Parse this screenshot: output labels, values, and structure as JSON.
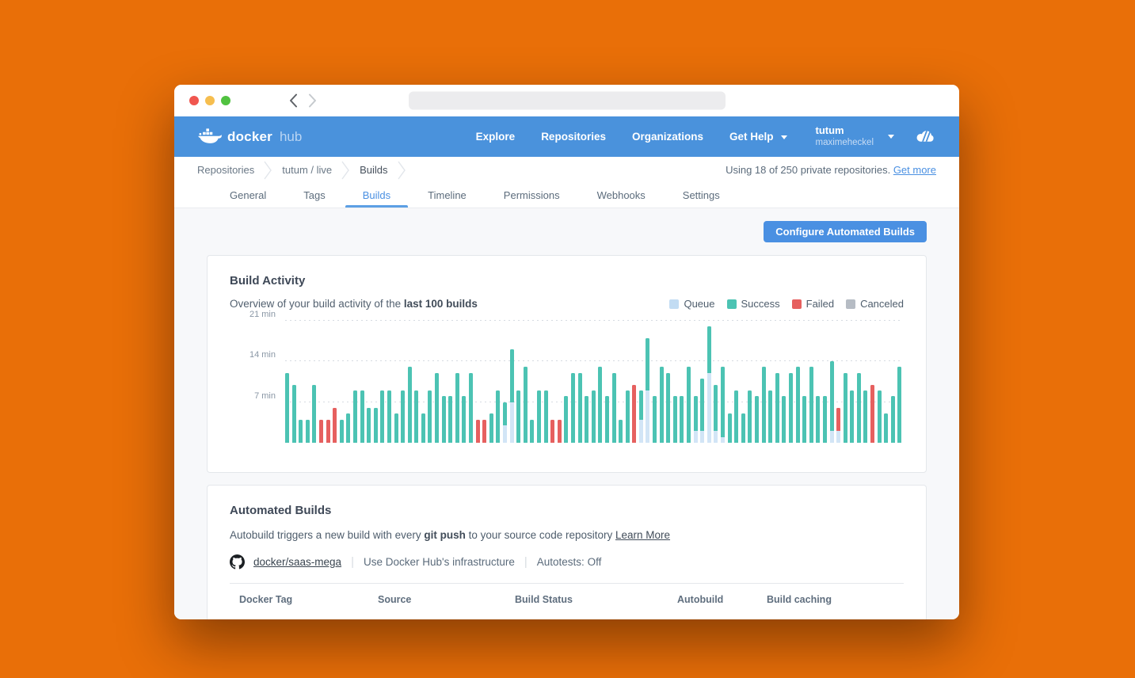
{
  "browser": {
    "url_value": ""
  },
  "navbar": {
    "brand": {
      "docker": "docker",
      "hub": "hub"
    },
    "links": [
      "Explore",
      "Repositories",
      "Organizations"
    ],
    "help_label": "Get Help",
    "account": {
      "org": "tutum",
      "user": "maximeheckel"
    }
  },
  "breadcrumb": {
    "items": [
      "Repositories",
      "tutum / live",
      "Builds"
    ],
    "usage_text": "Using 18 of 250 private repositories.",
    "usage_link": "Get more"
  },
  "tabs": {
    "items": [
      "General",
      "Tags",
      "Builds",
      "Timeline",
      "Permissions",
      "Webhooks",
      "Settings"
    ],
    "active": "Builds"
  },
  "toolbar": {
    "configure_button": "Configure Automated Builds"
  },
  "build_activity": {
    "title": "Build Activity",
    "subtitle_prefix": "Overview of your build activity of the ",
    "subtitle_bold": "last 100 builds"
  },
  "chart_data": {
    "type": "bar",
    "stacked": true,
    "unit": "min",
    "ylim": [
      0,
      21
    ],
    "yticks": [
      "7 min",
      "14 min",
      "21 min"
    ],
    "grid": "dotted-horizontal",
    "legend_position": "top-right",
    "legend": [
      {
        "label": "Queue",
        "key": "q",
        "color": "#C2DCF3"
      },
      {
        "label": "Success",
        "key": "s",
        "color": "#4CC3B3"
      },
      {
        "label": "Failed",
        "key": "f",
        "color": "#E6605F"
      },
      {
        "label": "Canceled",
        "key": "c",
        "color": "#B6BCC4"
      }
    ],
    "bar_colors": {
      "q": "#D2E5F6",
      "s": "#4CC3B3",
      "f": "#E6605F",
      "c": "#B6BCC4"
    },
    "bars": [
      {
        "s": 12
      },
      {
        "s": 10
      },
      {
        "s": 4
      },
      {
        "s": 4
      },
      {
        "s": 10
      },
      {
        "f": 4
      },
      {
        "f": 4
      },
      {
        "f": 6
      },
      {
        "s": 4
      },
      {
        "s": 5
      },
      {
        "s": 9
      },
      {
        "s": 9
      },
      {
        "s": 6
      },
      {
        "s": 6
      },
      {
        "s": 9
      },
      {
        "s": 9
      },
      {
        "s": 5
      },
      {
        "s": 9
      },
      {
        "s": 13
      },
      {
        "s": 9
      },
      {
        "s": 5
      },
      {
        "s": 9
      },
      {
        "s": 12
      },
      {
        "s": 8
      },
      {
        "s": 8
      },
      {
        "s": 12
      },
      {
        "s": 8
      },
      {
        "s": 12
      },
      {
        "f": 4
      },
      {
        "f": 4
      },
      {
        "s": 5
      },
      {
        "s": 9
      },
      {
        "q": 3,
        "s": 4
      },
      {
        "q": 7,
        "s": 9
      },
      {
        "s": 9
      },
      {
        "s": 13
      },
      {
        "s": 4
      },
      {
        "s": 9
      },
      {
        "s": 9
      },
      {
        "f": 4
      },
      {
        "f": 4
      },
      {
        "s": 8
      },
      {
        "s": 12
      },
      {
        "s": 12
      },
      {
        "s": 8
      },
      {
        "s": 9
      },
      {
        "s": 13
      },
      {
        "s": 8
      },
      {
        "s": 12
      },
      {
        "s": 4
      },
      {
        "s": 9
      },
      {
        "f": 10
      },
      {
        "q": 4,
        "s": 5
      },
      {
        "q": 9,
        "s": 9
      },
      {
        "s": 8
      },
      {
        "s": 13
      },
      {
        "s": 12
      },
      {
        "s": 8
      },
      {
        "s": 8
      },
      {
        "s": 13
      },
      {
        "q": 2,
        "s": 6
      },
      {
        "q": 2,
        "s": 9
      },
      {
        "q": 12,
        "s": 8
      },
      {
        "q": 2,
        "s": 8
      },
      {
        "q": 1,
        "s": 12
      },
      {
        "s": 5
      },
      {
        "s": 9
      },
      {
        "s": 5
      },
      {
        "s": 9
      },
      {
        "s": 8
      },
      {
        "s": 13
      },
      {
        "s": 9
      },
      {
        "s": 12
      },
      {
        "s": 8
      },
      {
        "s": 12
      },
      {
        "s": 13
      },
      {
        "s": 8
      },
      {
        "s": 13
      },
      {
        "s": 8
      },
      {
        "s": 8
      },
      {
        "q": 2,
        "s": 12
      },
      {
        "q": 2,
        "f": 4
      },
      {
        "s": 12
      },
      {
        "s": 9
      },
      {
        "s": 12
      },
      {
        "s": 9
      },
      {
        "f": 10
      },
      {
        "s": 9
      },
      {
        "s": 5
      },
      {
        "s": 8
      },
      {
        "s": 13
      }
    ]
  },
  "automated_builds": {
    "title": "Automated Builds",
    "desc_prefix": "Autobuild triggers a new build with every ",
    "desc_bold": "git push",
    "desc_suffix": " to your source code repository ",
    "desc_link": "Learn More",
    "repo_link": "docker/saas-mega",
    "infrastructure": "Use Docker Hub's infrastructure",
    "autotests": "Autotests: Off",
    "table_headers": [
      "Docker Tag",
      "Source",
      "Build Status",
      "Autobuild",
      "Build caching"
    ]
  }
}
